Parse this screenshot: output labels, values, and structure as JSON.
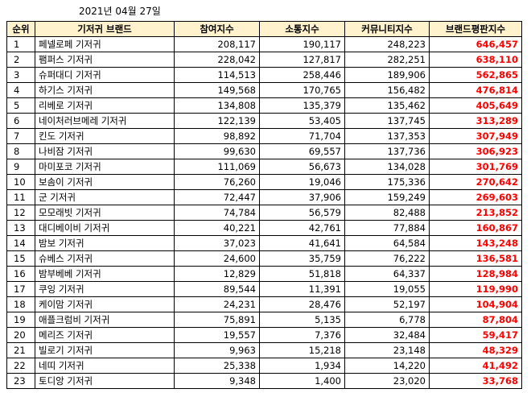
{
  "date_label": "2021년 04월 27일",
  "headers": [
    "순위",
    "기저귀 브랜드",
    "참여지수",
    "소통지수",
    "커뮤니티지수",
    "브랜드평판지수"
  ],
  "rows": [
    {
      "rank": "1",
      "brand": "페넬로페 기저귀",
      "participation": "208,117",
      "communication": "190,117",
      "community": "248,223",
      "reputation": "646,457"
    },
    {
      "rank": "2",
      "brand": "팸퍼스 기저귀",
      "participation": "228,042",
      "communication": "127,817",
      "community": "282,251",
      "reputation": "638,110"
    },
    {
      "rank": "3",
      "brand": "슈퍼대디 기저귀",
      "participation": "114,513",
      "communication": "258,446",
      "community": "189,906",
      "reputation": "562,865"
    },
    {
      "rank": "4",
      "brand": "하기스 기저귀",
      "participation": "149,568",
      "communication": "170,765",
      "community": "156,482",
      "reputation": "476,814"
    },
    {
      "rank": "5",
      "brand": "리베로 기저귀",
      "participation": "134,808",
      "communication": "135,379",
      "community": "135,462",
      "reputation": "405,649"
    },
    {
      "rank": "6",
      "brand": "네이처러브메레 기저귀",
      "participation": "122,139",
      "communication": "53,405",
      "community": "137,745",
      "reputation": "313,289"
    },
    {
      "rank": "7",
      "brand": "킨도 기저귀",
      "participation": "98,892",
      "communication": "71,704",
      "community": "137,353",
      "reputation": "307,949"
    },
    {
      "rank": "8",
      "brand": "나비잠 기저귀",
      "participation": "99,630",
      "communication": "69,557",
      "community": "137,736",
      "reputation": "306,923"
    },
    {
      "rank": "9",
      "brand": "마미포코 기저귀",
      "participation": "111,069",
      "communication": "56,673",
      "community": "134,028",
      "reputation": "301,769"
    },
    {
      "rank": "10",
      "brand": "보솜이 기저귀",
      "participation": "76,260",
      "communication": "19,046",
      "community": "175,336",
      "reputation": "270,642"
    },
    {
      "rank": "11",
      "brand": "군 기저귀",
      "participation": "72,447",
      "communication": "37,906",
      "community": "159,249",
      "reputation": "269,603"
    },
    {
      "rank": "12",
      "brand": "모모래빗 기저귀",
      "participation": "74,784",
      "communication": "56,579",
      "community": "82,488",
      "reputation": "213,852"
    },
    {
      "rank": "13",
      "brand": "대디베이비 기저귀",
      "participation": "40,221",
      "communication": "42,761",
      "community": "77,884",
      "reputation": "160,867"
    },
    {
      "rank": "14",
      "brand": "밤보 기저귀",
      "participation": "37,023",
      "communication": "41,641",
      "community": "64,584",
      "reputation": "143,248"
    },
    {
      "rank": "15",
      "brand": "슈베스 기저귀",
      "participation": "24,600",
      "communication": "35,759",
      "community": "76,222",
      "reputation": "136,581"
    },
    {
      "rank": "16",
      "brand": "밤부베베 기저귀",
      "participation": "12,829",
      "communication": "51,818",
      "community": "64,337",
      "reputation": "128,984"
    },
    {
      "rank": "17",
      "brand": "쿠잉 기저귀",
      "participation": "89,544",
      "communication": "11,391",
      "community": "19,055",
      "reputation": "119,990"
    },
    {
      "rank": "18",
      "brand": "케이맘 기저귀",
      "participation": "24,231",
      "communication": "28,476",
      "community": "52,197",
      "reputation": "104,904"
    },
    {
      "rank": "19",
      "brand": "애플크럼비 기저귀",
      "participation": "75,891",
      "communication": "5,135",
      "community": "6,778",
      "reputation": "87,804"
    },
    {
      "rank": "20",
      "brand": "메리즈 기저귀",
      "participation": "19,557",
      "communication": "7,376",
      "community": "32,484",
      "reputation": "59,417"
    },
    {
      "rank": "21",
      "brand": "빌로기 기저귀",
      "participation": "9,963",
      "communication": "15,218",
      "community": "23,148",
      "reputation": "48,329"
    },
    {
      "rank": "22",
      "brand": "네띠 기저귀",
      "participation": "25,338",
      "communication": "1,934",
      "community": "14,220",
      "reputation": "41,492"
    },
    {
      "rank": "23",
      "brand": "토디앙 기저귀",
      "participation": "9,348",
      "communication": "1,400",
      "community": "23,020",
      "reputation": "33,768"
    }
  ],
  "colors": {
    "header_bg": "#fff2cc",
    "score_text": "#ff0000",
    "border": "#000000"
  }
}
